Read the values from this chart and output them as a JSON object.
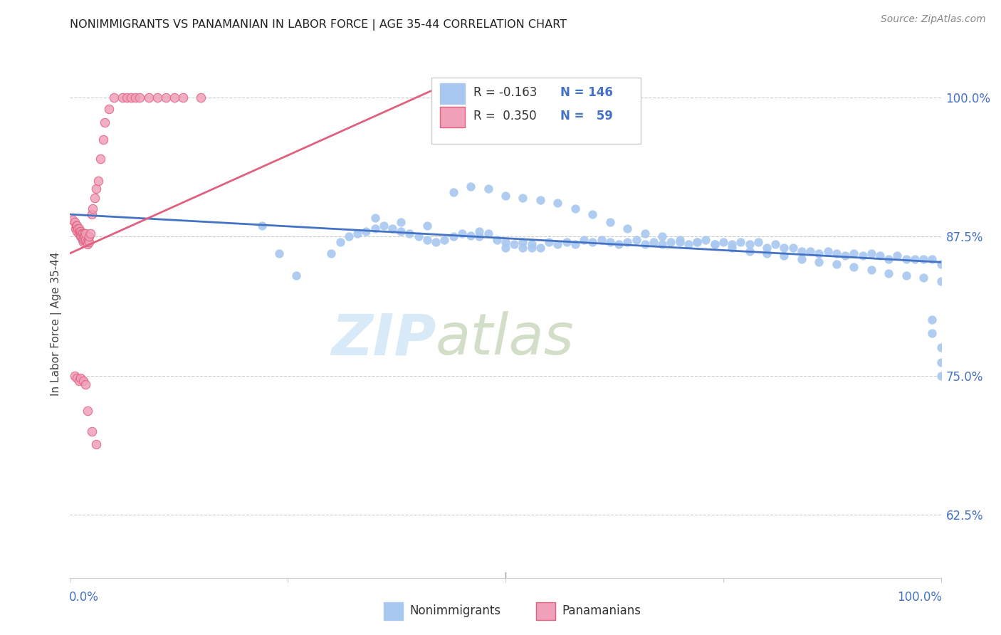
{
  "title": "NONIMMIGRANTS VS PANAMANIAN IN LABOR FORCE | AGE 35-44 CORRELATION CHART",
  "source": "Source: ZipAtlas.com",
  "ylabel": "In Labor Force | Age 35-44",
  "ytick_labels": [
    "62.5%",
    "75.0%",
    "87.5%",
    "100.0%"
  ],
  "ytick_values": [
    0.625,
    0.75,
    0.875,
    1.0
  ],
  "legend_label1": "Nonimmigrants",
  "legend_label2": "Panamanians",
  "color_blue": "#A8C8F0",
  "color_pink": "#F0A0B8",
  "color_blue_text": "#4472C4",
  "color_pink_line": "#E06080",
  "color_blue_line": "#4472C4",
  "blue_scatter_x": [
    0.22,
    0.24,
    0.26,
    0.3,
    0.31,
    0.32,
    0.33,
    0.34,
    0.35,
    0.36,
    0.37,
    0.38,
    0.39,
    0.4,
    0.41,
    0.42,
    0.43,
    0.44,
    0.45,
    0.46,
    0.47,
    0.48,
    0.49,
    0.5,
    0.5,
    0.51,
    0.52,
    0.52,
    0.53,
    0.54,
    0.55,
    0.56,
    0.57,
    0.58,
    0.59,
    0.6,
    0.61,
    0.62,
    0.63,
    0.64,
    0.65,
    0.66,
    0.67,
    0.68,
    0.69,
    0.7,
    0.71,
    0.72,
    0.73,
    0.74,
    0.75,
    0.76,
    0.77,
    0.78,
    0.79,
    0.8,
    0.81,
    0.82,
    0.83,
    0.84,
    0.85,
    0.86,
    0.87,
    0.88,
    0.89,
    0.9,
    0.91,
    0.92,
    0.93,
    0.94,
    0.95,
    0.96,
    0.97,
    0.98,
    0.99,
    1.0,
    0.44,
    0.46,
    0.48,
    0.5,
    0.52,
    0.54,
    0.56,
    0.58,
    0.6,
    0.62,
    0.64,
    0.66,
    0.68,
    0.7,
    0.72,
    0.74,
    0.76,
    0.78,
    0.8,
    0.82,
    0.84,
    0.86,
    0.88,
    0.9,
    0.92,
    0.94,
    0.96,
    0.98,
    1.0,
    0.35,
    0.38,
    0.41,
    0.47,
    0.53,
    0.99,
    0.99,
    1.0,
    1.0,
    1.0
  ],
  "blue_scatter_y": [
    0.885,
    0.86,
    0.84,
    0.86,
    0.87,
    0.875,
    0.878,
    0.88,
    0.882,
    0.885,
    0.882,
    0.88,
    0.878,
    0.875,
    0.872,
    0.87,
    0.872,
    0.875,
    0.878,
    0.876,
    0.88,
    0.878,
    0.872,
    0.865,
    0.87,
    0.868,
    0.865,
    0.87,
    0.868,
    0.865,
    0.87,
    0.868,
    0.87,
    0.868,
    0.872,
    0.87,
    0.872,
    0.87,
    0.868,
    0.87,
    0.872,
    0.868,
    0.87,
    0.868,
    0.87,
    0.87,
    0.868,
    0.87,
    0.872,
    0.868,
    0.87,
    0.868,
    0.87,
    0.868,
    0.87,
    0.865,
    0.868,
    0.865,
    0.865,
    0.862,
    0.862,
    0.86,
    0.862,
    0.86,
    0.858,
    0.86,
    0.858,
    0.86,
    0.858,
    0.855,
    0.858,
    0.855,
    0.855,
    0.855,
    0.855,
    0.85,
    0.915,
    0.92,
    0.918,
    0.912,
    0.91,
    0.908,
    0.905,
    0.9,
    0.895,
    0.888,
    0.882,
    0.878,
    0.875,
    0.872,
    0.87,
    0.868,
    0.865,
    0.862,
    0.86,
    0.858,
    0.855,
    0.852,
    0.85,
    0.848,
    0.845,
    0.842,
    0.84,
    0.838,
    0.835,
    0.892,
    0.888,
    0.885,
    0.875,
    0.865,
    0.8,
    0.788,
    0.775,
    0.762,
    0.75
  ],
  "pink_scatter_x": [
    0.003,
    0.005,
    0.006,
    0.007,
    0.008,
    0.008,
    0.009,
    0.01,
    0.01,
    0.011,
    0.012,
    0.012,
    0.013,
    0.013,
    0.014,
    0.014,
    0.015,
    0.015,
    0.016,
    0.016,
    0.017,
    0.018,
    0.018,
    0.019,
    0.02,
    0.021,
    0.022,
    0.022,
    0.023,
    0.025,
    0.026,
    0.028,
    0.03,
    0.032,
    0.035,
    0.038,
    0.04,
    0.045,
    0.05,
    0.06,
    0.065,
    0.07,
    0.075,
    0.08,
    0.09,
    0.1,
    0.11,
    0.12,
    0.13,
    0.15,
    0.005,
    0.008,
    0.01,
    0.012,
    0.015,
    0.018,
    0.02,
    0.025,
    0.03
  ],
  "pink_scatter_y": [
    0.89,
    0.888,
    0.882,
    0.885,
    0.88,
    0.885,
    0.882,
    0.878,
    0.882,
    0.88,
    0.875,
    0.88,
    0.878,
    0.875,
    0.872,
    0.878,
    0.87,
    0.875,
    0.872,
    0.878,
    0.875,
    0.872,
    0.878,
    0.87,
    0.868,
    0.872,
    0.87,
    0.875,
    0.878,
    0.895,
    0.9,
    0.91,
    0.918,
    0.925,
    0.945,
    0.962,
    0.978,
    0.99,
    1.0,
    1.0,
    1.0,
    1.0,
    1.0,
    1.0,
    1.0,
    1.0,
    1.0,
    1.0,
    1.0,
    1.0,
    0.75,
    0.748,
    0.745,
    0.748,
    0.745,
    0.742,
    0.718,
    0.7,
    0.688
  ],
  "blue_trend_x": [
    0.0,
    1.0
  ],
  "blue_trend_y": [
    0.895,
    0.852
  ],
  "pink_trend_x": [
    0.0,
    0.42
  ],
  "pink_trend_y": [
    0.86,
    1.008
  ],
  "xlim": [
    0.0,
    1.0
  ],
  "ylim": [
    0.568,
    1.025
  ]
}
